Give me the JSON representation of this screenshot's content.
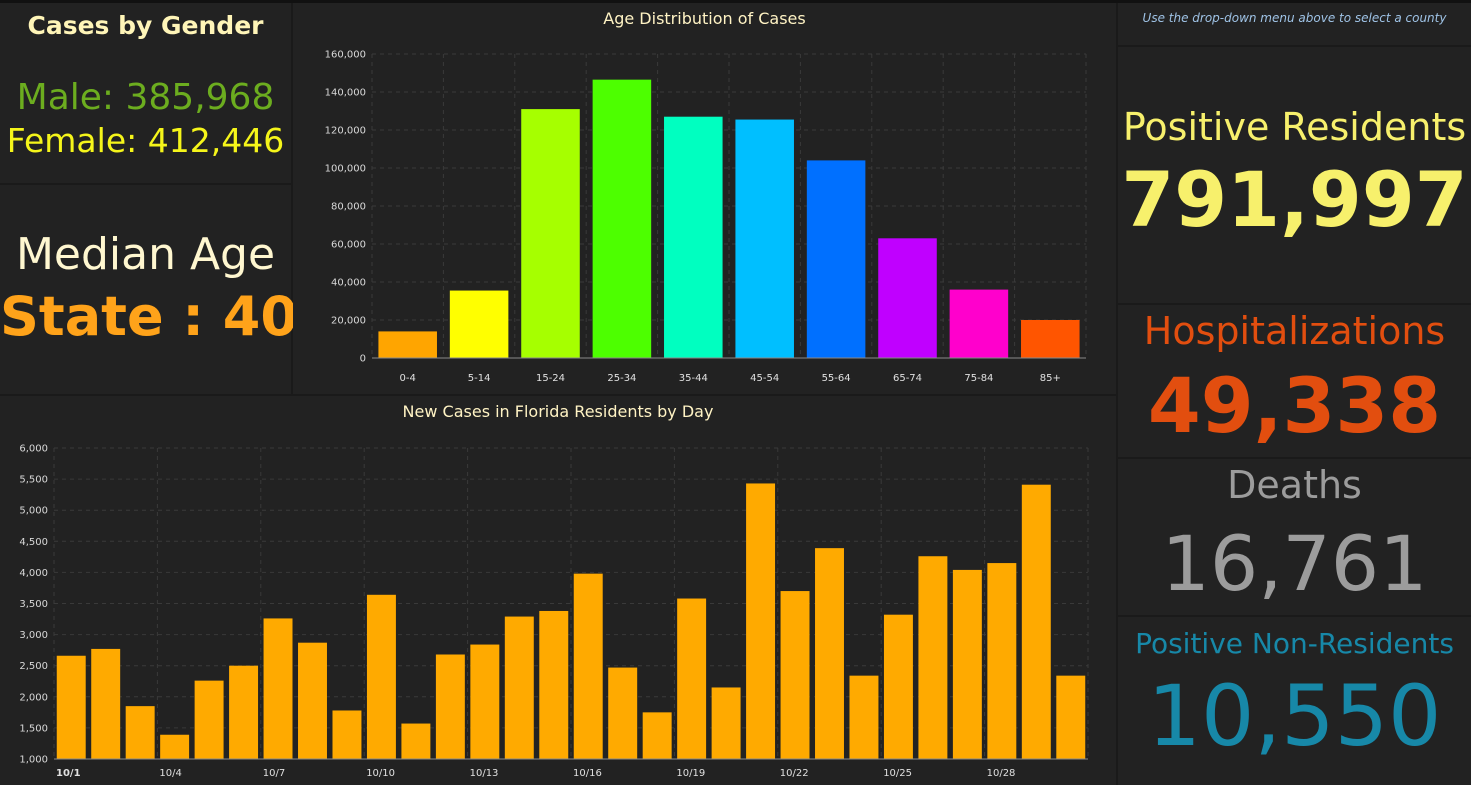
{
  "gender": {
    "title": "Cases by Gender",
    "male": "Male: 385,968",
    "female": "Female: 412,446"
  },
  "median": {
    "label": "Median Age",
    "value": "State : 40"
  },
  "hint": "Use the drop-down menu above to select a county",
  "stats": {
    "positive_label": "Positive Residents",
    "positive_value": "791,997",
    "hosp_label": "Hospitalizations",
    "hosp_value": "49,338",
    "deaths_label": "Deaths",
    "deaths_value": "16,761",
    "nonres_label": "Positive Non-Residents",
    "nonres_value": "10,550"
  },
  "colors": {
    "positive": "#f7f06c",
    "hosp": "#e24e0f",
    "deaths": "#9c9c9c",
    "nonres": "#1788a8",
    "daily_bar": "#ffaa00"
  },
  "chart_data": [
    {
      "type": "bar",
      "title": "Age Distribution of Cases",
      "categories": [
        "0-4",
        "5-14",
        "15-24",
        "25-34",
        "35-44",
        "45-54",
        "55-64",
        "65-74",
        "75-84",
        "85+"
      ],
      "values": [
        14000,
        35500,
        131000,
        146500,
        127000,
        125500,
        104000,
        63000,
        36000,
        20000
      ],
      "colors": [
        "#ffa500",
        "#ffff00",
        "#a6ff00",
        "#4dff00",
        "#00ffc0",
        "#00bfff",
        "#0070ff",
        "#c000ff",
        "#ff00cc",
        "#ff5500"
      ],
      "ylim": [
        0,
        160000
      ],
      "yticks": [
        0,
        20000,
        40000,
        60000,
        80000,
        100000,
        120000,
        140000,
        160000
      ],
      "ytick_labels": [
        "0",
        "20,000",
        "40,000",
        "60,000",
        "80,000",
        "100,000",
        "120,000",
        "140,000",
        "160,000"
      ],
      "grid": true
    },
    {
      "type": "bar",
      "title": "New Cases in Florida Residents by Day",
      "categories": [
        "10/1",
        "10/2",
        "10/3",
        "10/4",
        "10/5",
        "10/6",
        "10/7",
        "10/8",
        "10/9",
        "10/10",
        "10/11",
        "10/12",
        "10/13",
        "10/14",
        "10/15",
        "10/16",
        "10/17",
        "10/18",
        "10/19",
        "10/20",
        "10/21",
        "10/22",
        "10/23",
        "10/24",
        "10/25",
        "10/26",
        "10/27",
        "10/28",
        "10/29",
        "10/30"
      ],
      "values": [
        2660,
        2770,
        1850,
        1390,
        2260,
        2500,
        3260,
        2870,
        1780,
        3640,
        1570,
        2680,
        2840,
        3290,
        3380,
        3980,
        2470,
        1750,
        3580,
        2150,
        5430,
        3700,
        4390,
        2340,
        3320,
        4260,
        4040,
        4150,
        5410,
        2340
      ],
      "xtick_labels": [
        "10/1",
        "10/4",
        "10/7",
        "10/10",
        "10/13",
        "10/16",
        "10/19",
        "10/22",
        "10/25",
        "10/28"
      ],
      "ylim": [
        1000,
        6000
      ],
      "yticks": [
        1000,
        1500,
        2000,
        2500,
        3000,
        3500,
        4000,
        4500,
        5000,
        5500,
        6000
      ],
      "ytick_labels": [
        "1,000",
        "1,500",
        "2,000",
        "2,500",
        "3,000",
        "3,500",
        "4,000",
        "4,500",
        "5,000",
        "5,500",
        "6,000"
      ],
      "grid": true
    }
  ]
}
